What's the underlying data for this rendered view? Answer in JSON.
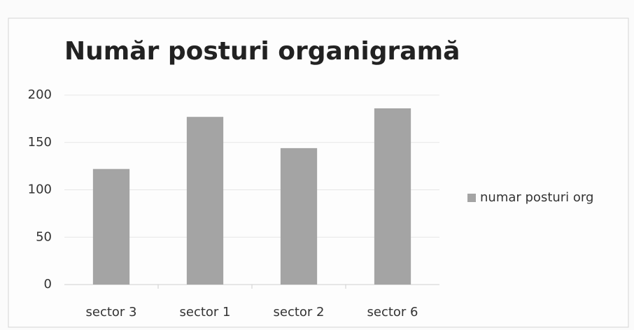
{
  "chart_data": {
    "type": "bar",
    "title": "Număr posturi organigramă",
    "categories": [
      "sector 3",
      "sector 1",
      "sector 2",
      "sector 6"
    ],
    "series": [
      {
        "name": "numar posturi org",
        "color": "#a4a4a4",
        "values": [
          122,
          177,
          144,
          186
        ]
      }
    ],
    "ylim": [
      0,
      200
    ],
    "yticks": [
      0,
      50,
      100,
      150,
      200
    ],
    "grid": true,
    "legend": "right"
  }
}
